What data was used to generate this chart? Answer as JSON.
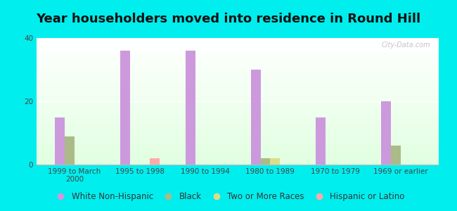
{
  "title": "Year householders moved into residence in Round Hill",
  "categories": [
    "1999 to March\n2000",
    "1995 to 1998",
    "1990 to 1994",
    "1980 to 1989",
    "1970 to 1979",
    "1969 or earlier"
  ],
  "series": {
    "White Non-Hispanic": [
      15,
      36,
      36,
      30,
      15,
      20
    ],
    "Black": [
      9,
      0,
      0,
      2,
      0,
      6
    ],
    "Two or More Races": [
      0,
      0,
      0,
      2,
      0,
      0
    ],
    "Hispanic or Latino": [
      0,
      2,
      0,
      0,
      0,
      0
    ]
  },
  "colors": {
    "White Non-Hispanic": "#cc99dd",
    "Black": "#aabb88",
    "Two or More Races": "#dddd88",
    "Hispanic or Latino": "#ffaaaa"
  },
  "ylim": [
    0,
    40
  ],
  "yticks": [
    0,
    20,
    40
  ],
  "bar_width": 0.15,
  "background_color": "#00eeee",
  "watermark": "City-Data.com",
  "title_fontsize": 13,
  "tick_fontsize": 7.5,
  "legend_fontsize": 8.5
}
